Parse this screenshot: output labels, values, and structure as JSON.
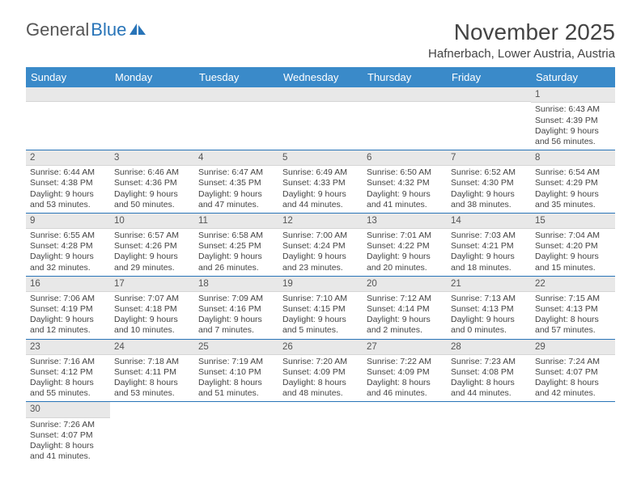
{
  "logo": {
    "part1": "General",
    "part2": "Blue"
  },
  "title": {
    "month": "November 2025",
    "location": "Hafnerbach, Lower Austria, Austria"
  },
  "colors": {
    "header_bg": "#3a8ac9",
    "accent": "#2874b8",
    "stripe": "#e8e8e8"
  },
  "weekdays": [
    "Sunday",
    "Monday",
    "Tuesday",
    "Wednesday",
    "Thursday",
    "Friday",
    "Saturday"
  ],
  "weeks": [
    [
      null,
      null,
      null,
      null,
      null,
      null,
      {
        "n": "1",
        "sr": "6:43 AM",
        "ss": "4:39 PM",
        "dh": "9",
        "dm": "56"
      }
    ],
    [
      {
        "n": "2",
        "sr": "6:44 AM",
        "ss": "4:38 PM",
        "dh": "9",
        "dm": "53"
      },
      {
        "n": "3",
        "sr": "6:46 AM",
        "ss": "4:36 PM",
        "dh": "9",
        "dm": "50"
      },
      {
        "n": "4",
        "sr": "6:47 AM",
        "ss": "4:35 PM",
        "dh": "9",
        "dm": "47"
      },
      {
        "n": "5",
        "sr": "6:49 AM",
        "ss": "4:33 PM",
        "dh": "9",
        "dm": "44"
      },
      {
        "n": "6",
        "sr": "6:50 AM",
        "ss": "4:32 PM",
        "dh": "9",
        "dm": "41"
      },
      {
        "n": "7",
        "sr": "6:52 AM",
        "ss": "4:30 PM",
        "dh": "9",
        "dm": "38"
      },
      {
        "n": "8",
        "sr": "6:54 AM",
        "ss": "4:29 PM",
        "dh": "9",
        "dm": "35"
      }
    ],
    [
      {
        "n": "9",
        "sr": "6:55 AM",
        "ss": "4:28 PM",
        "dh": "9",
        "dm": "32"
      },
      {
        "n": "10",
        "sr": "6:57 AM",
        "ss": "4:26 PM",
        "dh": "9",
        "dm": "29"
      },
      {
        "n": "11",
        "sr": "6:58 AM",
        "ss": "4:25 PM",
        "dh": "9",
        "dm": "26"
      },
      {
        "n": "12",
        "sr": "7:00 AM",
        "ss": "4:24 PM",
        "dh": "9",
        "dm": "23"
      },
      {
        "n": "13",
        "sr": "7:01 AM",
        "ss": "4:22 PM",
        "dh": "9",
        "dm": "20"
      },
      {
        "n": "14",
        "sr": "7:03 AM",
        "ss": "4:21 PM",
        "dh": "9",
        "dm": "18"
      },
      {
        "n": "15",
        "sr": "7:04 AM",
        "ss": "4:20 PM",
        "dh": "9",
        "dm": "15"
      }
    ],
    [
      {
        "n": "16",
        "sr": "7:06 AM",
        "ss": "4:19 PM",
        "dh": "9",
        "dm": "12"
      },
      {
        "n": "17",
        "sr": "7:07 AM",
        "ss": "4:18 PM",
        "dh": "9",
        "dm": "10"
      },
      {
        "n": "18",
        "sr": "7:09 AM",
        "ss": "4:16 PM",
        "dh": "9",
        "dm": "7"
      },
      {
        "n": "19",
        "sr": "7:10 AM",
        "ss": "4:15 PM",
        "dh": "9",
        "dm": "5"
      },
      {
        "n": "20",
        "sr": "7:12 AM",
        "ss": "4:14 PM",
        "dh": "9",
        "dm": "2"
      },
      {
        "n": "21",
        "sr": "7:13 AM",
        "ss": "4:13 PM",
        "dh": "9",
        "dm": "0"
      },
      {
        "n": "22",
        "sr": "7:15 AM",
        "ss": "4:13 PM",
        "dh": "8",
        "dm": "57"
      }
    ],
    [
      {
        "n": "23",
        "sr": "7:16 AM",
        "ss": "4:12 PM",
        "dh": "8",
        "dm": "55"
      },
      {
        "n": "24",
        "sr": "7:18 AM",
        "ss": "4:11 PM",
        "dh": "8",
        "dm": "53"
      },
      {
        "n": "25",
        "sr": "7:19 AM",
        "ss": "4:10 PM",
        "dh": "8",
        "dm": "51"
      },
      {
        "n": "26",
        "sr": "7:20 AM",
        "ss": "4:09 PM",
        "dh": "8",
        "dm": "48"
      },
      {
        "n": "27",
        "sr": "7:22 AM",
        "ss": "4:09 PM",
        "dh": "8",
        "dm": "46"
      },
      {
        "n": "28",
        "sr": "7:23 AM",
        "ss": "4:08 PM",
        "dh": "8",
        "dm": "44"
      },
      {
        "n": "29",
        "sr": "7:24 AM",
        "ss": "4:07 PM",
        "dh": "8",
        "dm": "42"
      }
    ],
    [
      {
        "n": "30",
        "sr": "7:26 AM",
        "ss": "4:07 PM",
        "dh": "8",
        "dm": "41"
      },
      null,
      null,
      null,
      null,
      null,
      null
    ]
  ]
}
